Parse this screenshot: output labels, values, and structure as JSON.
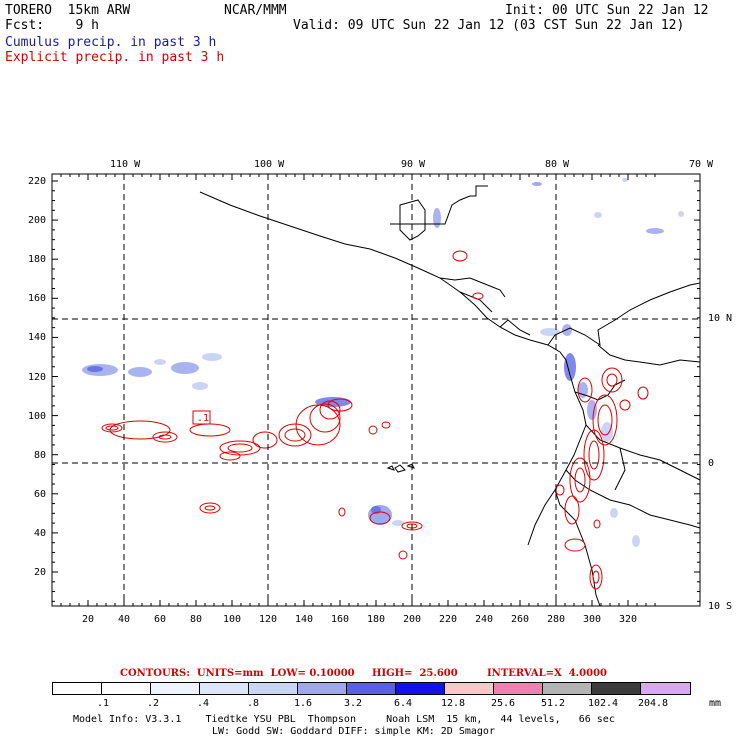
{
  "header": {
    "model": "TORERO  15km ARW",
    "org": "NCAR/MMM",
    "init": "Init: 00 UTC Sun 22 Jan 12",
    "fcst": "Fcst:    9 h",
    "valid": "Valid: 09 UTC Sun 22 Jan 12 (03 CST Sun 22 Jan 12)",
    "legend_cumulus": "Cumulus precip. in past 3 h",
    "legend_explicit": "Explicit precip. in past 3 h"
  },
  "map": {
    "lon_labels": [
      "110 W",
      "100 W",
      "90 W",
      "80 W",
      "70 W"
    ],
    "lat_labels": [
      "10 N",
      "0",
      "10 S"
    ],
    "x_ticks": [
      "20",
      "40",
      "60",
      "80",
      "100",
      "120",
      "140",
      "160",
      "180",
      "200",
      "220",
      "240",
      "260",
      "280",
      "300",
      "320"
    ],
    "y_ticks": [
      "20",
      "40",
      "60",
      "80",
      "100",
      "120",
      "140",
      "160",
      "180",
      "200",
      "220"
    ],
    "max_label": ".1",
    "colors": {
      "coast": "#000000",
      "grid": "#000000",
      "cumulus": "#4a5ae0",
      "explicit": "#e00000"
    }
  },
  "contours": {
    "units": "CONTOURS:  UNITS=mm  LOW= 0.10000",
    "high": "HIGH=  25.600",
    "interval": "INTERVAL=X  4.0000"
  },
  "colorbar": {
    "labels": [
      ".1",
      ".2",
      ".4",
      ".8",
      "1.6",
      "3.2",
      "6.4",
      "12.8",
      "25.6",
      "51.2",
      "102.4",
      "204.8"
    ],
    "unit": "mm",
    "colors": [
      "#ffffff",
      "#ffffff",
      "#eef3fc",
      "#dde6f8",
      "#c8d6f4",
      "#9fa6ee",
      "#5a5fe6",
      "#1212e8",
      "#fac8c8",
      "#f080b0",
      "#b4b4b4",
      "#3c3c3c",
      "#d8a8f0"
    ]
  },
  "footer": {
    "line1": "Model Info: V3.3.1    Tiedtke YSU PBL  Thompson     Noah LSM  15 km,   44 levels,   66 sec",
    "line2": "LW: Godd SW: Goddard DIFF: simple KM: 2D Smagor"
  }
}
